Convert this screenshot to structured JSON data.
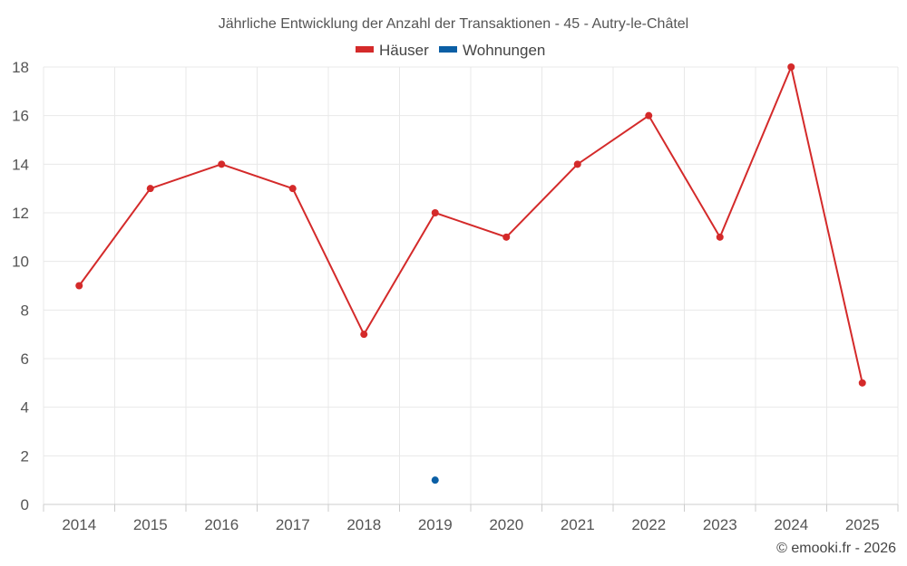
{
  "chart_data": {
    "type": "line",
    "title": "Jährliche Entwicklung der Anzahl der Transaktionen - 45 - Autry-le-Châtel",
    "categories": [
      "2014",
      "2015",
      "2016",
      "2017",
      "2018",
      "2019",
      "2020",
      "2021",
      "2022",
      "2023",
      "2024",
      "2025"
    ],
    "series": [
      {
        "name": "Häuser",
        "color": "#d42a2a",
        "values": [
          9,
          13,
          14,
          13,
          7,
          12,
          11,
          14,
          16,
          11,
          18,
          5
        ]
      },
      {
        "name": "Wohnungen",
        "color": "#0b5fa5",
        "values": [
          null,
          null,
          null,
          null,
          null,
          1,
          null,
          null,
          null,
          null,
          null,
          null
        ]
      }
    ],
    "ylim": [
      0,
      18
    ],
    "yticks": [
      "0",
      "2",
      "4",
      "6",
      "8",
      "10",
      "12",
      "14",
      "16",
      "18"
    ],
    "xlabel": "",
    "ylabel": "",
    "grid": true,
    "legend_position": "top-center"
  },
  "credit": "© emooki.fr - 2026"
}
